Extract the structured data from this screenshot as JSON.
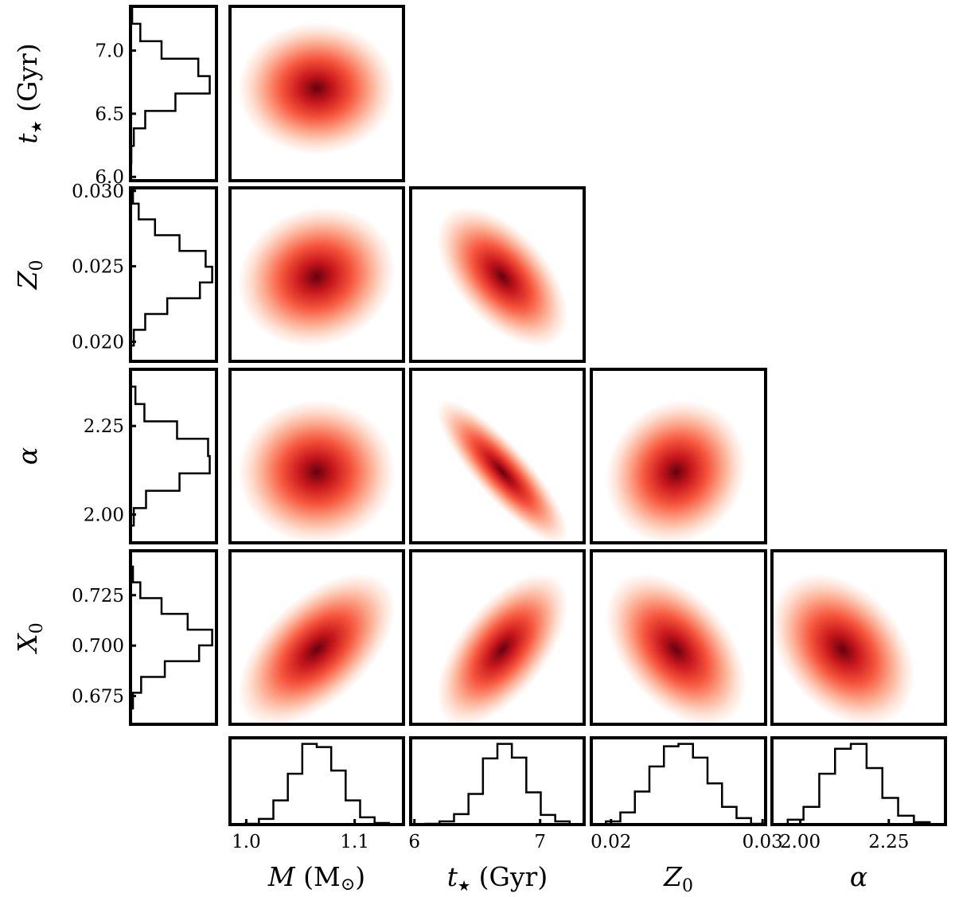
{
  "chart_data": {
    "type": "corner",
    "parameters": [
      {
        "key": "M",
        "label_html": "<tspan font-style='italic'>M</tspan> (M<tspan font-size='22' dy='5'>⊙</tspan><tspan dy='-5'>)</tspan>",
        "x_ticks": [
          "1.0",
          "1.1"
        ],
        "x_tick_values": [
          1.0,
          1.1
        ],
        "range": [
          0.985,
          1.145
        ],
        "mean": 1.065,
        "sd": 0.025
      },
      {
        "key": "t",
        "label_html": "<tspan font-style='italic'>t</tspan><tspan font-size='18' dy='6'>★</tspan><tspan dy='-6'> (Gyr)</tspan>",
        "x_ticks": [
          "6",
          "7"
        ],
        "x_tick_values": [
          6,
          7
        ],
        "y_ticks": [
          "6.0",
          "6.5",
          "7.0"
        ],
        "y_tick_values": [
          6.0,
          6.5,
          7.0
        ],
        "range": [
          5.97,
          7.35
        ],
        "mean": 6.7,
        "sd": 0.18
      },
      {
        "key": "Z",
        "label_html": "<tspan font-style='italic'>Z</tspan><tspan font-size='22' dy='7'>0</tspan>",
        "x_ticks": [
          "0.02",
          "0.03"
        ],
        "x_tick_values": [
          0.02,
          0.03
        ],
        "y_ticks": [
          "0.020",
          "0.025",
          "0.030"
        ],
        "y_tick_values": [
          0.02,
          0.025,
          0.03
        ],
        "range": [
          0.0187,
          0.0302
        ],
        "mean": 0.0243,
        "sd": 0.0016
      },
      {
        "key": "a",
        "label_html": "<tspan font-style='italic'>α</tspan>",
        "x_ticks": [
          "2.00",
          "2.25"
        ],
        "x_tick_values": [
          2.0,
          2.25
        ],
        "y_ticks": [
          "2.00",
          "2.25"
        ],
        "y_tick_values": [
          2.0,
          2.25
        ],
        "range": [
          1.92,
          2.41
        ],
        "mean": 2.12,
        "sd": 0.07
      },
      {
        "key": "X",
        "label_html": "<tspan font-style='italic'>X</tspan><tspan font-size='22' dy='7'>0</tspan>",
        "y_ticks": [
          "0.675",
          "0.700",
          "0.725"
        ],
        "y_tick_values": [
          0.675,
          0.7,
          0.725
        ],
        "range": [
          0.661,
          0.747
        ],
        "mean": 0.698,
        "sd": 0.013
      }
    ],
    "x_params": [
      "M",
      "t",
      "Z",
      "a"
    ],
    "y_params": [
      "t",
      "Z",
      "a",
      "X"
    ],
    "histograms_x": {
      "M": [
        0.0,
        0.01,
        0.07,
        0.3,
        0.63,
        1.0,
        0.96,
        0.67,
        0.3,
        0.09,
        0.02,
        0.0
      ],
      "t": [
        0.0,
        0.01,
        0.04,
        0.13,
        0.38,
        0.82,
        1.0,
        0.83,
        0.4,
        0.12,
        0.04,
        0.0
      ],
      "Z": [
        0.0,
        0.04,
        0.15,
        0.41,
        0.72,
        0.97,
        1.0,
        0.83,
        0.51,
        0.22,
        0.08,
        0.01
      ],
      "a": [
        0.0,
        0.06,
        0.22,
        0.63,
        0.94,
        1.0,
        0.7,
        0.33,
        0.11,
        0.03,
        0.0
      ]
    },
    "histograms_y": {
      "t": [
        0.0,
        0.01,
        0.04,
        0.18,
        0.55,
        0.97,
        0.83,
        0.38,
        0.12,
        0.02
      ],
      "Z": [
        0.0,
        0.04,
        0.18,
        0.45,
        0.85,
        1.0,
        0.92,
        0.6,
        0.3,
        0.1,
        0.03
      ],
      "a": [
        0.0,
        0.04,
        0.19,
        0.6,
        0.97,
        0.95,
        0.57,
        0.17,
        0.06,
        0.0
      ],
      "X": [
        0.0,
        0.03,
        0.13,
        0.42,
        0.84,
        1.0,
        0.7,
        0.38,
        0.12,
        0.03,
        0.0
      ]
    },
    "correlations": {
      "t|M": 0.0,
      "Z|M": 0.1,
      "a|M": 0.0,
      "X|M": 0.55,
      "Z|t": -0.55,
      "a|t": -0.85,
      "X|t": 0.6,
      "a|Z": 0.1,
      "X|Z": -0.45,
      "X|a": -0.35
    },
    "colormap": [
      "#ffffff",
      "#fde0d2",
      "#fcab8f",
      "#f6553c",
      "#c9181d",
      "#67000d"
    ]
  }
}
